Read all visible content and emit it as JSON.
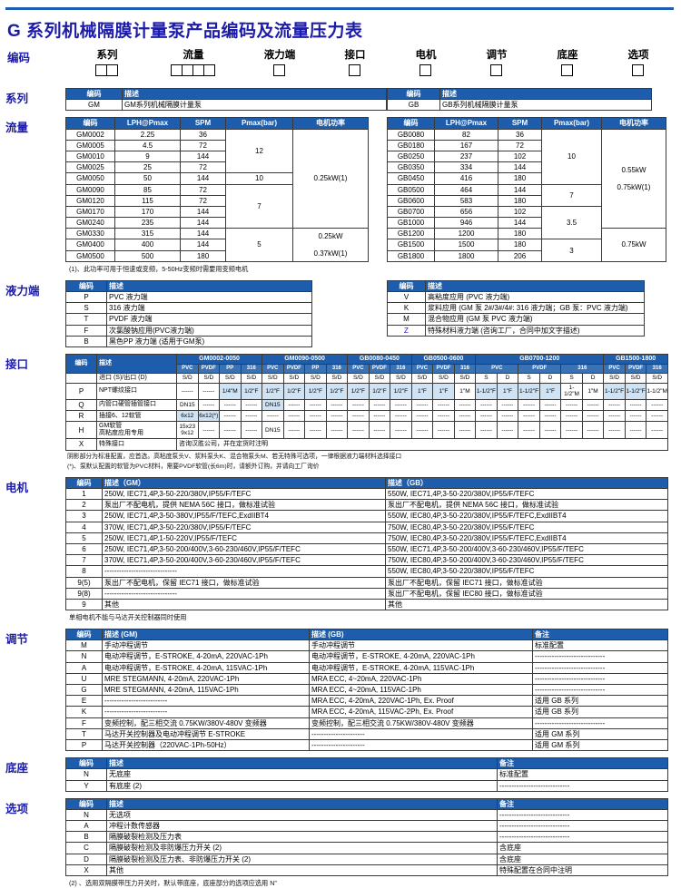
{
  "page": {
    "title": "G 系列机械隔膜计量泵产品编码及流量压力表"
  },
  "code_row": {
    "label": "编码",
    "categories": [
      {
        "label": "系列",
        "boxes": 2
      },
      {
        "label": "流量",
        "boxes": 4
      },
      {
        "label": "液力端",
        "boxes": 1
      },
      {
        "label": "接口",
        "boxes": 1
      },
      {
        "label": "电机",
        "boxes": 1
      },
      {
        "label": "调节",
        "boxes": 1
      },
      {
        "label": "底座",
        "boxes": 1
      },
      {
        "label": "选项",
        "boxes": 1
      }
    ]
  },
  "series": {
    "label": "系列",
    "gm_rows": [
      [
        {
          "t": "编码",
          "cls": "h"
        },
        {
          "t": "描述",
          "cls": "h tl"
        }
      ],
      [
        "GM",
        {
          "t": "GM系列机械隔膜计量泵",
          "cls": "tl"
        }
      ]
    ],
    "gb_rows": [
      [
        {
          "t": "编码",
          "cls": "h"
        },
        {
          "t": "描述",
          "cls": "h tl"
        }
      ],
      [
        "GB",
        {
          "t": "GB系列机械隔膜计量泵",
          "cls": "tl"
        }
      ]
    ]
  },
  "flow": {
    "label": "流量",
    "gm_rows": [
      [
        {
          "t": "编码",
          "cls": "h"
        },
        {
          "t": "LPH@Pmax",
          "cls": "h"
        },
        {
          "t": "SPM",
          "cls": "h"
        },
        {
          "t": "Pmax(bar)",
          "cls": "h"
        },
        {
          "t": "电机功率",
          "cls": "h"
        }
      ],
      [
        "GM0002",
        "2.25",
        "36",
        {
          "t": "12",
          "rs": 4
        },
        {
          "t": "0.25kW(1)",
          "rs": 9
        }
      ],
      [
        "GM0005",
        "4.5",
        "72"
      ],
      [
        "GM0010",
        "9",
        "144"
      ],
      [
        "GM0025",
        "25",
        "72"
      ],
      [
        "GM0050",
        "50",
        "144",
        {
          "t": "10",
          "rs": 1
        }
      ],
      [
        "GM0090",
        "85",
        "72",
        {
          "t": "7",
          "rs": 4
        }
      ],
      [
        "GM0120",
        "115",
        "72"
      ],
      [
        "GM0170",
        "170",
        "144"
      ],
      [
        "GM0240",
        "235",
        "144"
      ],
      [
        "GM0330",
        "315",
        "144",
        {
          "t": "5",
          "rs": 3
        },
        {
          "t": "0.25kW\n\n0.37kW(1)",
          "rs": 3,
          "cls": "pre"
        }
      ],
      [
        "GM0400",
        "400",
        "144"
      ],
      [
        "GM0500",
        "500",
        "180"
      ]
    ],
    "gb_rows": [
      [
        {
          "t": "编码",
          "cls": "h"
        },
        {
          "t": "LPH@Pmax",
          "cls": "h"
        },
        {
          "t": "SPM",
          "cls": "h"
        },
        {
          "t": "Pmax(bar)",
          "cls": "h"
        },
        {
          "t": "电机功率",
          "cls": "h"
        }
      ],
      [
        "GB0080",
        "82",
        "36",
        {
          "t": "10",
          "rs": 5
        },
        {
          "t": "0.55kW\n\n0.75kW(1)",
          "rs": 9,
          "cls": "pre"
        }
      ],
      [
        "GB0180",
        "167",
        "72"
      ],
      [
        "GB0250",
        "237",
        "102"
      ],
      [
        "GB0350",
        "334",
        "144"
      ],
      [
        "GB0450",
        "416",
        "180"
      ],
      [
        "GB0500",
        "464",
        "144",
        {
          "t": "7",
          "rs": 2
        }
      ],
      [
        "GB0600",
        "583",
        "180"
      ],
      [
        "GB0700",
        "656",
        "102",
        {
          "t": "3.5",
          "rs": 3
        }
      ],
      [
        "GB1000",
        "946",
        "144"
      ],
      [
        "GB1200",
        "1200",
        "180",
        {
          "t": "0.75kW",
          "rs": 3
        }
      ],
      [
        "GB1500",
        "1500",
        "180",
        {
          "t": "3",
          "rs": 2
        }
      ],
      [
        "GB1800",
        "1800",
        "206"
      ]
    ],
    "footnote": "(1)、此功率可用于恒速或变频，5-50Hz变频时需要用变频电机"
  },
  "liquid_end": {
    "label": "液力端",
    "left_rows": [
      [
        {
          "t": "编码",
          "cls": "h"
        },
        {
          "t": "描述",
          "cls": "h tl"
        }
      ],
      [
        "P",
        {
          "t": "PVC 液力端",
          "cls": "tl"
        }
      ],
      [
        "S",
        {
          "t": "316 液力端",
          "cls": "tl"
        }
      ],
      [
        "T",
        {
          "t": "PVDF 液力端",
          "cls": "tl"
        }
      ],
      [
        "F",
        {
          "t": "次氯酸钠应用(PVC液力端)",
          "cls": "tl"
        }
      ],
      [
        "B",
        {
          "t": "黑色PP 液力端 (适用于GM泵)",
          "cls": "tl"
        }
      ]
    ],
    "right_rows": [
      [
        {
          "t": "编码",
          "cls": "h"
        },
        {
          "t": "描述",
          "cls": "h tl"
        }
      ],
      [
        "V",
        {
          "t": "高粘度应用 (PVC 液力端)",
          "cls": "tl"
        }
      ],
      [
        "K",
        {
          "t": "浆料应用 (GM 泵 2#/3#/4#: 316 液力端；GB 泵：PVC 液力端)",
          "cls": "tl"
        }
      ],
      [
        "M",
        {
          "t": "混合物应用 (GM 泵 PVC 液力端)",
          "cls": "tl"
        }
      ],
      [
        {
          "t": "Z",
          "cls": "bl"
        },
        {
          "t": "特殊材料液力端 (咨询工厂，合同中加文字描述)",
          "cls": "tl"
        }
      ]
    ]
  },
  "interface": {
    "label": "接口",
    "rows": [
      [
        {
          "t": "编码",
          "rs": 2,
          "cls": "h"
        },
        {
          "t": "描述",
          "rs": 2,
          "cls": "h tl"
        },
        {
          "t": "GM0002-0050",
          "cs": 4,
          "cls": "h"
        },
        {
          "t": "GM0090-0500",
          "cs": 4,
          "cls": "h"
        },
        {
          "t": "GB0080-0450",
          "cs": 3,
          "cls": "h"
        },
        {
          "t": "GB0500-0600",
          "cs": 3,
          "cls": "h"
        },
        {
          "t": "GB0700-1200",
          "cs": 6,
          "cls": "h"
        },
        {
          "t": "GB1500-1800",
          "cs": 3,
          "cls": "h"
        }
      ],
      [
        {
          "t": "PVC",
          "cls": "h2"
        },
        {
          "t": "PVDF",
          "cls": "h2"
        },
        {
          "t": "PP",
          "cls": "h2"
        },
        {
          "t": "316",
          "cls": "h2"
        },
        {
          "t": "PVC",
          "cls": "h2"
        },
        {
          "t": "PVDF",
          "cls": "h2"
        },
        {
          "t": "PP",
          "cls": "h2"
        },
        {
          "t": "316",
          "cls": "h2"
        },
        {
          "t": "PVC",
          "cls": "h2"
        },
        {
          "t": "PVDF",
          "cls": "h2"
        },
        {
          "t": "316",
          "cls": "h2"
        },
        {
          "t": "PVC",
          "cls": "h2"
        },
        {
          "t": "PVDF",
          "cls": "h2"
        },
        {
          "t": "316",
          "cls": "h2"
        },
        {
          "t": "PVC",
          "cs": 2,
          "cls": "h2"
        },
        {
          "t": "PVDF",
          "cs": 2,
          "cls": "h2"
        },
        {
          "t": "316",
          "cs": 2,
          "cls": "h2"
        },
        {
          "t": "PVC",
          "cls": "h2"
        },
        {
          "t": "PVDF",
          "cls": "h2"
        },
        {
          "t": "316",
          "cls": "h2"
        }
      ],
      [
        "",
        {
          "t": "进口 (S)/出口 (D)",
          "cls": "tl"
        },
        "S/D",
        "S/D",
        "S/D",
        "S/D",
        "S/D",
        "S/D",
        "S/D",
        "S/D",
        "S/D",
        "S/D",
        "S/D",
        "S/D",
        "S/D",
        "S/D",
        "S",
        "D",
        "S",
        "D",
        "S",
        "D",
        "S/D",
        "S/D",
        "S/D"
      ],
      [
        "P",
        {
          "t": "NPT螺纹接口",
          "cls": "tl"
        },
        "------",
        "------",
        {
          "t": "1/4\"M",
          "cls": "sh"
        },
        {
          "t": "1/2\"F",
          "cls": "sh"
        },
        {
          "t": "1/2\"F",
          "cls": "sh"
        },
        {
          "t": "1/2\"F",
          "cls": "sh"
        },
        {
          "t": "1/2\"F",
          "cls": "sh"
        },
        {
          "t": "1/2\"F",
          "cls": "sh"
        },
        {
          "t": "1/2\"F",
          "cls": "sh"
        },
        {
          "t": "1/2\"F",
          "cls": "sh"
        },
        {
          "t": "1/2\"F",
          "cls": "sh"
        },
        {
          "t": "1\"F",
          "cls": "sh"
        },
        {
          "t": "1\"F",
          "cls": "sh"
        },
        {
          "t": "1\"M"
        },
        {
          "t": "1-1/2\"F",
          "cls": "sh"
        },
        {
          "t": "1\"F",
          "cls": "sh"
        },
        {
          "t": "1-1/2\"F",
          "cls": "sh"
        },
        {
          "t": "1\"F",
          "cls": "sh"
        },
        {
          "t": "1-1/2\"M"
        },
        {
          "t": "1\"M"
        },
        {
          "t": "1-1/2\"F",
          "cls": "sh"
        },
        {
          "t": "1-1/2\"F",
          "cls": "sh"
        },
        {
          "t": "1-1/2\"M"
        }
      ],
      [
        "Q",
        {
          "t": "内管口硬管插管接口",
          "cls": "tl"
        },
        "DN15",
        "------",
        "------",
        "------",
        {
          "t": "DN15",
          "cls": "sh"
        },
        "------",
        "------",
        "------",
        "------",
        "------",
        "------",
        "------",
        "------",
        "------",
        "------",
        "------",
        "------",
        "------",
        "------",
        "------",
        "------",
        "------",
        "------"
      ],
      [
        "R",
        {
          "t": "插接6、12软管",
          "cls": "tl"
        },
        {
          "t": "6x12",
          "cls": "sh"
        },
        {
          "t": "6x12(*)",
          "cls": "sh"
        },
        "------",
        "------",
        "------",
        "------",
        "------",
        "------",
        "------",
        "------",
        "------",
        "------",
        "------",
        "------",
        "------",
        "------",
        "------",
        "------",
        "------",
        "------",
        "------",
        "------",
        "------"
      ],
      [
        "H",
        {
          "t": "GM软管\n高粘度应用专用",
          "cls": "tl pre"
        },
        {
          "t": "15x23\n9x12",
          "cls": "pre"
        },
        "------",
        "------",
        "------",
        "DN15",
        "------",
        "------",
        "------",
        "------",
        "------",
        "------",
        "------",
        "------",
        "------",
        "------",
        "------",
        "------",
        "------",
        "------",
        "------",
        "------",
        "------",
        "------"
      ],
      [
        "X",
        {
          "t": "特殊接口",
          "cls": "tl"
        },
        {
          "t": "咨询汉胜公司，并在定货时注明",
          "cs": 23,
          "cls": "tl"
        }
      ]
    ],
    "note1": "阴影部分为标准配置，应首选。高粘度泵头V、浆料泵头K、混合物泵头M、若无特殊可选项，一律根据液力端材料选择接口",
    "note2": "(*)、泵默认配置的软管为PVC材料，需要PVDF软管(长6m)时，请额外订购，并请向工厂询价"
  },
  "motor": {
    "label": "电机",
    "rows": [
      [
        {
          "t": "编码",
          "cls": "h"
        },
        {
          "t": "描述（GM）",
          "cls": "h tl"
        },
        {
          "t": "描述（GB）",
          "cls": "h tl"
        }
      ],
      [
        "1",
        {
          "t": "250W, IEC71,4P,3-50-220/380V,IP55/F/TEFC",
          "cls": "tl"
        },
        {
          "t": "550W, IEC71,4P,3-50-220/380V,IP55/F/TEFC",
          "cls": "tl"
        }
      ],
      [
        "2",
        {
          "t": "泵出厂不配电机，提供 NEMA 56C 接口，做标准试验",
          "cls": "tl"
        },
        {
          "t": "泵出厂不配电机，提供 NEMA 56C 接口，做标准试验",
          "cls": "tl"
        }
      ],
      [
        "3",
        {
          "t": "250W, IEC71,4P,3-50-380V,IP55/F/TEFC,ExdIIBT4",
          "cls": "tl"
        },
        {
          "t": "550W, IEC80,4P,3-50-220/380V,IP55/F/TEFC,ExdIIBT4",
          "cls": "tl"
        }
      ],
      [
        "4",
        {
          "t": "370W, IEC71,4P,3-50-220/380V,IP55/F/TEFC",
          "cls": "tl"
        },
        {
          "t": "750W, IEC80,4P,3-50-220/380V,IP55/F/TEFC",
          "cls": "tl"
        }
      ],
      [
        "5",
        {
          "t": "250W, IEC71,4P,1-50-220V,IP55/F/TEFC",
          "cls": "tl"
        },
        {
          "t": "750W, IEC80,4P,3-50-220/380V,IP55/F/TEFC,ExdIIBT4",
          "cls": "tl"
        }
      ],
      [
        "6",
        {
          "t": "250W, IEC71,4P,3-50-200/400V,3-60-230/460V,IP55/F/TEFC",
          "cls": "tl"
        },
        {
          "t": "550W, IEC71,4P,3-50-200/400V,3-60-230/460V,IP55/F/TEFC",
          "cls": "tl"
        }
      ],
      [
        "7",
        {
          "t": "370W, IEC71,4P,3-50-200/400V,3-60-230/460V,IP55/F/TEFC",
          "cls": "tl"
        },
        {
          "t": "750W, IEC80,4P,3-50-200/400V,3-60-230/460V,IP55/F/TEFC",
          "cls": "tl"
        }
      ],
      [
        "8",
        {
          "t": "------------------------------",
          "cls": "tl"
        },
        {
          "t": "550W, IEC80,4P,3-50-220/380V,IP55/F/TEFC",
          "cls": "tl"
        }
      ],
      [
        "9(5)",
        {
          "t": "泵出厂不配电机，保留 IEC71 接口，做标准试验",
          "cls": "tl"
        },
        {
          "t": "泵出厂不配电机，保留 IEC71 接口，做标准试验",
          "cls": "tl"
        }
      ],
      [
        "9(8)",
        {
          "t": "------------------------------",
          "cls": "tl"
        },
        {
          "t": "泵出厂不配电机，保留 IEC80 接口，做标准试验",
          "cls": "tl"
        }
      ],
      [
        "9",
        {
          "t": "其他",
          "cls": "tl"
        },
        {
          "t": "其他",
          "cls": "tl"
        }
      ]
    ],
    "note": "单相电机不能与马达开关控制器同时使用"
  },
  "adjust": {
    "label": "调节",
    "rows": [
      [
        {
          "t": "编码",
          "cls": "h"
        },
        {
          "t": "描述 (GM)",
          "cls": "h tl"
        },
        {
          "t": "描述 (GB)",
          "cls": "h tl"
        },
        {
          "t": "备注",
          "cls": "h tl"
        }
      ],
      [
        "M",
        {
          "t": "手动冲程调节",
          "cls": "tl"
        },
        {
          "t": "手动冲程调节",
          "cls": "tl"
        },
        {
          "t": "标准配置",
          "cls": "tl"
        }
      ],
      [
        "N",
        {
          "t": "电动冲程调节，E-STROKE, 4-20mA, 220VAC-1Ph",
          "cls": "tl"
        },
        {
          "t": "电动冲程调节，E-STROKE, 4-20mA, 220VAC-1Ph",
          "cls": "tl"
        },
        {
          "t": "-----------------------------",
          "cls": "tl"
        }
      ],
      [
        "A",
        {
          "t": "电动冲程调节，E-STROKE, 4-20mA, 115VAC-1Ph",
          "cls": "tl"
        },
        {
          "t": "电动冲程调节，E-STROKE, 4-20mA, 115VAC-1Ph",
          "cls": "tl"
        },
        {
          "t": "-----------------------------",
          "cls": "tl"
        }
      ],
      [
        "U",
        {
          "t": "MRE STEGMANN, 4-20mA, 220VAC-1Ph",
          "cls": "tl"
        },
        {
          "t": "MRA ECC, 4~20mA, 220VAC-1Ph",
          "cls": "tl"
        },
        {
          "t": "-----------------------------",
          "cls": "tl"
        }
      ],
      [
        "G",
        {
          "t": "MRE STEGMANN, 4-20mA, 115VAC-1Ph",
          "cls": "tl"
        },
        {
          "t": "MRA ECC, 4~20mA, 115VAC-1Ph",
          "cls": "tl"
        },
        {
          "t": "-----------------------------",
          "cls": "tl"
        }
      ],
      [
        "E",
        {
          "t": "--------------------------",
          "cls": "tl"
        },
        {
          "t": "MRA ECC, 4-20mA, 220VAC-1Ph, Ex. Proof",
          "cls": "tl"
        },
        {
          "t": "适用 GB 系列",
          "cls": "tl"
        }
      ],
      [
        "K",
        {
          "t": "--------------------------",
          "cls": "tl"
        },
        {
          "t": "MRA ECC, 4-20mA, 115VAC-2Ph, Ex. Proof",
          "cls": "tl"
        },
        {
          "t": "适用 GB 系列",
          "cls": "tl"
        }
      ],
      [
        "F",
        {
          "t": "变频控制，配三相交流 0.75KW/380V-480V 变频器",
          "cls": "tl"
        },
        {
          "t": "变频控制，配三相交流 0.75KW/380V-480V 变频器",
          "cls": "tl"
        },
        {
          "t": "-----------------------------",
          "cls": "tl"
        }
      ],
      [
        "T",
        {
          "t": "马达开关控制器及电动冲程调节 E-STROKE",
          "cls": "tl"
        },
        {
          "t": "----------------------",
          "cls": "tl"
        },
        {
          "t": "适用 GM 系列",
          "cls": "tl"
        }
      ],
      [
        "P",
        {
          "t": "马达开关控制器（220VAC-1Ph-50Hz）",
          "cls": "tl"
        },
        {
          "t": "----------------------",
          "cls": "tl"
        },
        {
          "t": "适用 GM 系列",
          "cls": "tl"
        }
      ]
    ]
  },
  "base": {
    "label": "底座",
    "rows": [
      [
        {
          "t": "编码",
          "cls": "h"
        },
        {
          "t": "描述",
          "cls": "h tl"
        },
        {
          "t": "备注",
          "cls": "h tl"
        }
      ],
      [
        "N",
        {
          "t": "无底座",
          "cls": "tl"
        },
        {
          "t": "标准配置",
          "cls": "tl"
        }
      ],
      [
        "Y",
        {
          "t": "有底座 (2)",
          "cls": "tl"
        },
        {
          "t": "-----------------------------",
          "cls": "tl"
        }
      ]
    ]
  },
  "options": {
    "label": "选项",
    "rows": [
      [
        {
          "t": "编码",
          "cls": "h"
        },
        {
          "t": "描述",
          "cls": "h tl"
        },
        {
          "t": "备注",
          "cls": "h tl"
        }
      ],
      [
        "N",
        {
          "t": "无选项",
          "cls": "tl"
        },
        {
          "t": "-----------------------------",
          "cls": "tl"
        }
      ],
      [
        "A",
        {
          "t": "冲程计数传感器",
          "cls": "tl"
        },
        {
          "t": "-----------------------------",
          "cls": "tl"
        }
      ],
      [
        "B",
        {
          "t": "隔膜破裂检测及压力表",
          "cls": "tl"
        },
        {
          "t": "-----------------------------",
          "cls": "tl"
        }
      ],
      [
        "C",
        {
          "t": "隔膜破裂检测及非防爆压力开关 (2)",
          "cls": "tl"
        },
        {
          "t": "含底座",
          "cls": "tl"
        }
      ],
      [
        "D",
        {
          "t": "隔膜破裂检测及压力表、非防爆压力开关 (2)",
          "cls": "tl"
        },
        {
          "t": "含底座",
          "cls": "tl"
        }
      ],
      [
        "X",
        {
          "t": "其他",
          "cls": "tl"
        },
        {
          "t": "特殊配置在合同中注明",
          "cls": "tl"
        }
      ]
    ]
  },
  "footnote2": "(2) 、选用双隔膜带压力开关时，默认带底座，底座部分的选项应选用 N”"
}
